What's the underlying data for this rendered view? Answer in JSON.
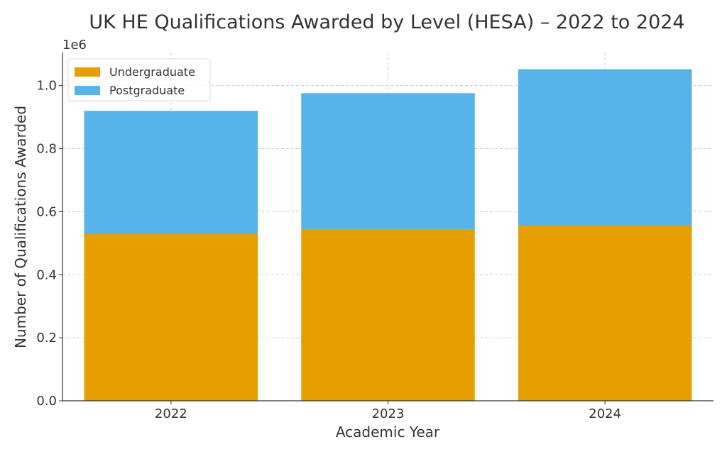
{
  "chart_data": {
    "type": "bar",
    "stacked": true,
    "title": "UK HE Qualifications Awarded by Level (HESA) – 2022 to 2024",
    "xlabel": "Academic Year",
    "ylabel": "Number of Qualifications Awarded",
    "y_offset_label": "1e6",
    "categories": [
      "2022",
      "2023",
      "2024"
    ],
    "series": [
      {
        "name": "Undergraduate",
        "color": "#E69F00",
        "values": [
          530000,
          545000,
          557000
        ]
      },
      {
        "name": "Postgraduate",
        "color": "#56B4E9",
        "values": [
          390000,
          431000,
          495000
        ]
      }
    ],
    "ylim": [
      0,
      1105000
    ],
    "yticks": [
      0,
      200000,
      400000,
      600000,
      800000,
      1000000
    ],
    "ytick_labels": [
      "0.0",
      "0.2",
      "0.4",
      "0.6",
      "0.8",
      "1.0"
    ],
    "grid": true,
    "legend_position": "top-left"
  }
}
